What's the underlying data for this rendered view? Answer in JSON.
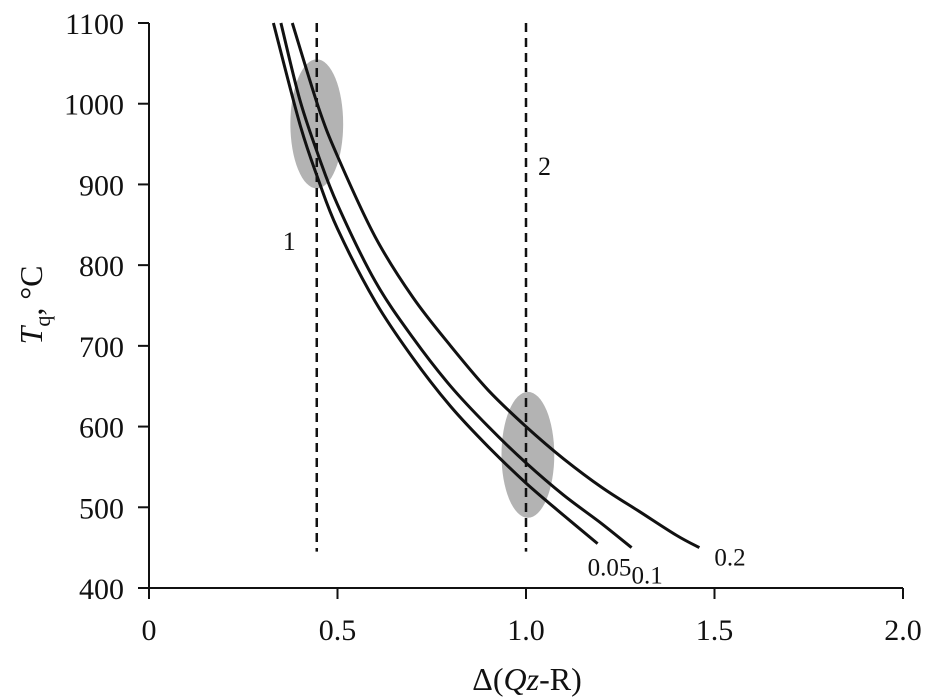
{
  "chart_data": {
    "type": "line",
    "title": "",
    "xlabel": {
      "prefix": "Δ(",
      "italic": "Qz",
      "suffix": "-R)"
    },
    "ylabel": {
      "italic": "T",
      "sub": "q",
      "suffix": ", °C"
    },
    "xlim": [
      0,
      2.0
    ],
    "ylim": [
      400,
      1100
    ],
    "grid": false,
    "x_ticks": [
      0,
      0.5,
      1.0,
      1.5,
      2.0
    ],
    "x_tick_labels": [
      "0",
      "0.5",
      "1.0",
      "1.5",
      "2.0"
    ],
    "y_ticks": [
      400,
      500,
      600,
      700,
      800,
      900,
      1000,
      1100
    ],
    "y_tick_labels": [
      "400",
      "500",
      "600",
      "700",
      "800",
      "900",
      "1000",
      "1100"
    ],
    "series": [
      {
        "name": "0.05",
        "x": [
          0.33,
          0.4,
          0.45,
          0.5,
          0.6,
          0.7,
          0.8,
          0.9,
          1.0,
          1.1,
          1.19
        ],
        "y": [
          1100,
          975,
          905,
          845,
          755,
          685,
          625,
          575,
          530,
          490,
          455
        ]
      },
      {
        "name": "0.1",
        "x": [
          0.35,
          0.4,
          0.45,
          0.5,
          0.6,
          0.7,
          0.8,
          0.9,
          1.0,
          1.1,
          1.2,
          1.28
        ],
        "y": [
          1100,
          1005,
          935,
          875,
          780,
          710,
          650,
          600,
          555,
          515,
          480,
          450
        ]
      },
      {
        "name": "0.2",
        "x": [
          0.38,
          0.45,
          0.5,
          0.6,
          0.7,
          0.8,
          0.9,
          1.0,
          1.1,
          1.2,
          1.3,
          1.4,
          1.46
        ],
        "y": [
          1100,
          995,
          935,
          835,
          760,
          700,
          645,
          600,
          560,
          525,
          495,
          465,
          450
        ]
      }
    ],
    "vertical_lines": [
      {
        "label": "1",
        "x": 0.445,
        "y_range": [
          445,
          1100
        ]
      },
      {
        "label": "2",
        "x": 1.0,
        "y_range": [
          445,
          1100
        ]
      }
    ],
    "highlight_regions": [
      {
        "cx": 0.445,
        "cy": 975,
        "rx": 0.07,
        "ry": 80,
        "color": "#b3b3b3"
      },
      {
        "cx": 1.005,
        "cy": 565,
        "rx": 0.07,
        "ry": 78,
        "color": "#b3b3b3"
      }
    ],
    "colors": {
      "curve": "#111111",
      "axis": "#111111",
      "highlight": "#b3b3b3"
    }
  }
}
